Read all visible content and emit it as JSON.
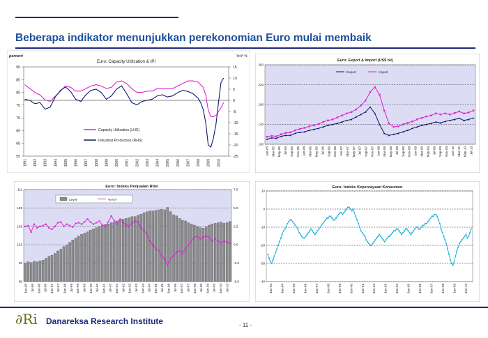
{
  "slide": {
    "title": "Beberapa indikator menunjukkan perekonomian Euro mulai membaik",
    "footer_logo": "∂Ri",
    "footer_institute": "Danareksa Research Institute",
    "page_number": "- 11 -"
  },
  "colors": {
    "accent": "#1f4e9a",
    "dark_blue": "#1a2a7a",
    "magenta": "#e020d0",
    "navy": "#0a1a6a",
    "cyan": "#20b0d8",
    "bars": "#909090",
    "plot_bg_purple": "#dcdcf4"
  },
  "chart_data": [
    {
      "type": "line",
      "title": "Euro: Capacity Utilization & IPI",
      "left_unit": "percent",
      "right_unit": "YoY %",
      "x_ticks": [
        "1991",
        "1992",
        "1993",
        "1994",
        "1995",
        "1996",
        "1997",
        "1998",
        "1999",
        "2000",
        "2001",
        "2002",
        "2003",
        "2004",
        "2005",
        "2006",
        "2007",
        "2008",
        "2009",
        "2010"
      ],
      "x_range": [
        1990.9,
        2011
      ],
      "ylim_left": [
        55,
        90
      ],
      "yticks_left": [
        55,
        60,
        65,
        70,
        75,
        80,
        85,
        90
      ],
      "ylim_right": [
        -25,
        15
      ],
      "yticks_right": [
        -25,
        -20,
        -15,
        -10,
        -5,
        0,
        5,
        10,
        15
      ],
      "legend_position": "lower-left",
      "series": [
        {
          "name": "Capacity Utilization (LHS)",
          "axis": "left",
          "color": "#e020d0",
          "x": [
            1991.0,
            1991.5,
            1992.0,
            1992.5,
            1993.0,
            1993.5,
            1994.0,
            1994.5,
            1995.0,
            1995.5,
            1996.0,
            1996.5,
            1997.0,
            1997.5,
            1998.0,
            1998.5,
            1999.0,
            1999.5,
            2000.0,
            2000.5,
            2001.0,
            2001.5,
            2002.0,
            2002.5,
            2003.0,
            2003.5,
            2004.0,
            2004.5,
            2005.0,
            2005.5,
            2006.0,
            2006.5,
            2007.0,
            2007.5,
            2008.0,
            2008.25,
            2008.5,
            2008.75,
            2009.0,
            2009.25,
            2009.5,
            2009.75,
            2010.0,
            2010.25,
            2010.5
          ],
          "y": [
            83,
            81.5,
            80,
            79,
            77,
            76.5,
            78.5,
            80.5,
            82.5,
            82,
            80.5,
            80.5,
            81.5,
            82.5,
            83,
            82.5,
            81.5,
            82,
            84,
            84.5,
            83.5,
            81.5,
            80,
            80,
            80.5,
            80.5,
            81.5,
            81.5,
            81.5,
            81.5,
            82.5,
            83.5,
            84.5,
            84.5,
            84,
            83,
            82,
            79,
            73,
            70.5,
            70.5,
            71,
            72.5,
            74,
            76
          ]
        },
        {
          "name": "Industrial Production (RHS)",
          "axis": "right",
          "color": "#0a1a6a",
          "x": [
            1991.0,
            1991.5,
            1992.0,
            1992.5,
            1993.0,
            1993.5,
            1994.0,
            1994.5,
            1995.0,
            1995.5,
            1996.0,
            1996.5,
            1997.0,
            1997.5,
            1998.0,
            1998.5,
            1999.0,
            1999.5,
            2000.0,
            2000.5,
            2001.0,
            2001.5,
            2002.0,
            2002.5,
            2003.0,
            2003.5,
            2004.0,
            2004.5,
            2005.0,
            2005.5,
            2006.0,
            2006.5,
            2007.0,
            2007.5,
            2008.0,
            2008.25,
            2008.5,
            2008.75,
            2009.0,
            2009.25,
            2009.5,
            2009.75,
            2010.0,
            2010.25,
            2010.5
          ],
          "y": [
            0.5,
            0,
            -1.5,
            -1,
            -4,
            -3,
            1.5,
            4.5,
            6,
            4,
            0.5,
            -0.5,
            2.5,
            4.5,
            5,
            3.5,
            0.5,
            2,
            5,
            6.5,
            3,
            -1,
            -2,
            -0.5,
            0,
            0.5,
            2,
            2.5,
            1.5,
            2,
            3.5,
            4.5,
            4,
            3,
            1,
            -1,
            -4,
            -10,
            -20,
            -21,
            -17,
            -11,
            -1,
            8,
            10
          ]
        }
      ]
    },
    {
      "type": "line",
      "title": "Euro: Export & Import (US$ bil)",
      "x_ticks": [
        "Jan-05",
        "Mar-05",
        "May-05",
        "Jul-05",
        "Sep-05",
        "Nov-05",
        "Jan-06",
        "Mar-06",
        "May-06",
        "Jul-06",
        "Sep-06",
        "Nov-06",
        "Jan-07",
        "Mar-07",
        "May-07",
        "Jul-07",
        "Sep-07",
        "Nov-07",
        "Jan-08",
        "Mar-08",
        "May-08",
        "Jul-08",
        "Sep-08",
        "Nov-08",
        "Jan-09",
        "Mar-09",
        "May-09",
        "Jul-09",
        "Sep-09",
        "Nov-09",
        "Jan-10",
        "Mar-10",
        "May-10",
        "Jul-10"
      ],
      "ylim": [
        100,
        260
      ],
      "yticks": [
        100,
        140,
        180,
        220,
        260
      ],
      "legend_position": "top",
      "series": [
        {
          "name": "Export",
          "color": "#0a1a6a",
          "values": [
            110,
            113,
            112,
            116,
            118,
            118,
            122,
            124,
            125,
            128,
            130,
            132,
            135,
            138,
            140,
            142,
            145,
            148,
            150,
            155,
            160,
            165,
            175,
            162,
            140,
            122,
            118,
            120,
            122,
            125,
            128,
            132,
            135,
            138,
            140,
            142,
            145,
            143,
            146,
            148,
            150,
            152,
            148,
            150,
            153
          ]
        },
        {
          "name": "Import",
          "color": "#e020d0",
          "values": [
            115,
            117,
            116,
            120,
            123,
            124,
            128,
            131,
            133,
            136,
            138,
            141,
            145,
            148,
            150,
            154,
            158,
            162,
            165,
            170,
            178,
            188,
            205,
            215,
            200,
            168,
            142,
            135,
            136,
            140,
            143,
            146,
            150,
            153,
            156,
            158,
            162,
            160,
            162,
            160,
            163,
            166,
            162,
            164,
            168
          ]
        }
      ]
    },
    {
      "type": "bar",
      "title": "Euro: Indeks Penjualan Ritel",
      "x_ticks": [
        "Jan-95",
        "Jul-95",
        "Jan-96",
        "Jul-96",
        "Jan-97",
        "Jul-97",
        "Jan-98",
        "Jul-98",
        "Jan-99",
        "Jul-99",
        "Jan-00",
        "Jul-00",
        "Jan-01",
        "Jul-01",
        "Jan-02",
        "Jul-02",
        "Jan-03",
        "Jul-03",
        "Jan-04",
        "Jul-04",
        "Jan-05",
        "Jul-05",
        "Jan-06",
        "Jul-06",
        "Jan-07",
        "Jul-07",
        "Jan-08",
        "Jul-08",
        "Jan-09",
        "Jul-09",
        "Jan-10",
        "Jul-10"
      ],
      "ylim_left": [
        96,
        111
      ],
      "yticks_left": [
        96,
        99,
        102,
        105,
        108,
        111
      ],
      "ylim_right": [
        -5,
        7.5
      ],
      "yticks_right": [
        -5.0,
        -2.5,
        0.0,
        2.5,
        5.0,
        7.5
      ],
      "legend_position": "top",
      "series": [
        {
          "name": "Level",
          "kind": "bar",
          "color": "#909090",
          "values": [
            99,
            99.2,
            99.1,
            99.3,
            99.2,
            99.4,
            99.5,
            99.8,
            100.1,
            100.3,
            100.6,
            101,
            101.3,
            101.7,
            102,
            102.4,
            102.8,
            103.1,
            103.4,
            103.7,
            103.9,
            104.1,
            104.4,
            104.6,
            104.8,
            105,
            105.2,
            105.3,
            105.4,
            105.6,
            105.7,
            105.9,
            106.1,
            106.2,
            106.3,
            106.4,
            106.6,
            106.6,
            106.8,
            107,
            107.2,
            107.4,
            107.5,
            107.5,
            107.6,
            107.7,
            107.8,
            107.7,
            108.1,
            107.4,
            106.9,
            106.7,
            106.3,
            106,
            105.9,
            105.6,
            105.4,
            105.2,
            105,
            104.8,
            104.7,
            104.9,
            105.2,
            105.4,
            105.5,
            105.6,
            105.7,
            105.5,
            105.6,
            105.8
          ]
        },
        {
          "name": "%YoY",
          "kind": "line",
          "color": "#e020d0",
          "values": [
            2.5,
            2.6,
            1.7,
            2.8,
            2.3,
            2.5,
            2.6,
            2.8,
            2.3,
            2.1,
            2.5,
            3.0,
            3.1,
            2.5,
            2.8,
            2.6,
            2.4,
            2.9,
            3.0,
            2.8,
            3.1,
            3.5,
            3.1,
            2.8,
            3.0,
            3.2,
            2.7,
            2.5,
            3.1,
            3.9,
            3.3,
            2.8,
            3.5,
            3.0,
            2.7,
            2.5,
            2.9,
            3.2,
            3.1,
            2.3,
            1.9,
            1.5,
            0.5,
            0.0,
            -0.6,
            -0.8,
            -1.5,
            -2.0,
            -2.8,
            -1.9,
            -1.5,
            -1.0,
            -0.8,
            -1.2,
            -0.5,
            0.0,
            0.5,
            1.0,
            1.2,
            0.8,
            1.0,
            1.2,
            1.0,
            0.5,
            0.8,
            0.5,
            0.3,
            0.5,
            0.3,
            0.2
          ]
        }
      ]
    },
    {
      "type": "line",
      "title": "Euro: Indeks Kepercayaan Konsumen",
      "x_ticks": [
        "Jan-93",
        "Jan-94",
        "Jan-95",
        "Jan-96",
        "Jan-97",
        "Jan-98",
        "Jan-99",
        "Jan-00",
        "Jan-01",
        "Jan-02",
        "Jan-03",
        "Jan-04",
        "Jan-05",
        "Jan-06",
        "Jan-07",
        "Jan-08",
        "Jan-09",
        "Jan-10"
      ],
      "ylim": [
        -40,
        10
      ],
      "yticks": [
        -40,
        -30,
        -20,
        -10,
        0,
        10
      ],
      "series": [
        {
          "name": "Indeks Kepercayaan Konsumen",
          "color": "#20b0d8",
          "values": [
            -25,
            -27,
            -29,
            -30,
            -28,
            -26,
            -24,
            -22,
            -20,
            -18,
            -16,
            -14,
            -12,
            -11,
            -10,
            -8,
            -7,
            -6,
            -6,
            -7,
            -8,
            -9,
            -10,
            -11,
            -13,
            -14,
            -15,
            -16,
            -16,
            -15,
            -14,
            -13,
            -12,
            -11,
            -12,
            -13,
            -14,
            -13,
            -12,
            -11,
            -10,
            -9,
            -8,
            -7,
            -6,
            -5,
            -5,
            -4,
            -4,
            -5,
            -6,
            -6,
            -5,
            -4,
            -3,
            -2,
            -2,
            -3,
            -2,
            -1,
            0,
            1,
            1,
            0,
            -1,
            0,
            -2,
            -4,
            -6,
            -8,
            -10,
            -12,
            -13,
            -14,
            -15,
            -17,
            -18,
            -19,
            -20,
            -20,
            -19,
            -18,
            -17,
            -16,
            -15,
            -14,
            -15,
            -16,
            -17,
            -18,
            -17,
            -16,
            -15,
            -15,
            -14,
            -13,
            -12,
            -12,
            -11,
            -11,
            -12,
            -13,
            -14,
            -13,
            -12,
            -11,
            -11,
            -12,
            -13,
            -14,
            -13,
            -12,
            -11,
            -10,
            -10,
            -11,
            -11,
            -10,
            -9,
            -9,
            -8,
            -8,
            -7,
            -6,
            -5,
            -4,
            -4,
            -3,
            -3,
            -4,
            -6,
            -8,
            -11,
            -13,
            -15,
            -17,
            -19,
            -22,
            -25,
            -28,
            -30,
            -31,
            -29,
            -26,
            -23,
            -21,
            -19,
            -18,
            -17,
            -16,
            -15,
            -14,
            -16,
            -15,
            -13,
            -11
          ]
        }
      ]
    }
  ]
}
